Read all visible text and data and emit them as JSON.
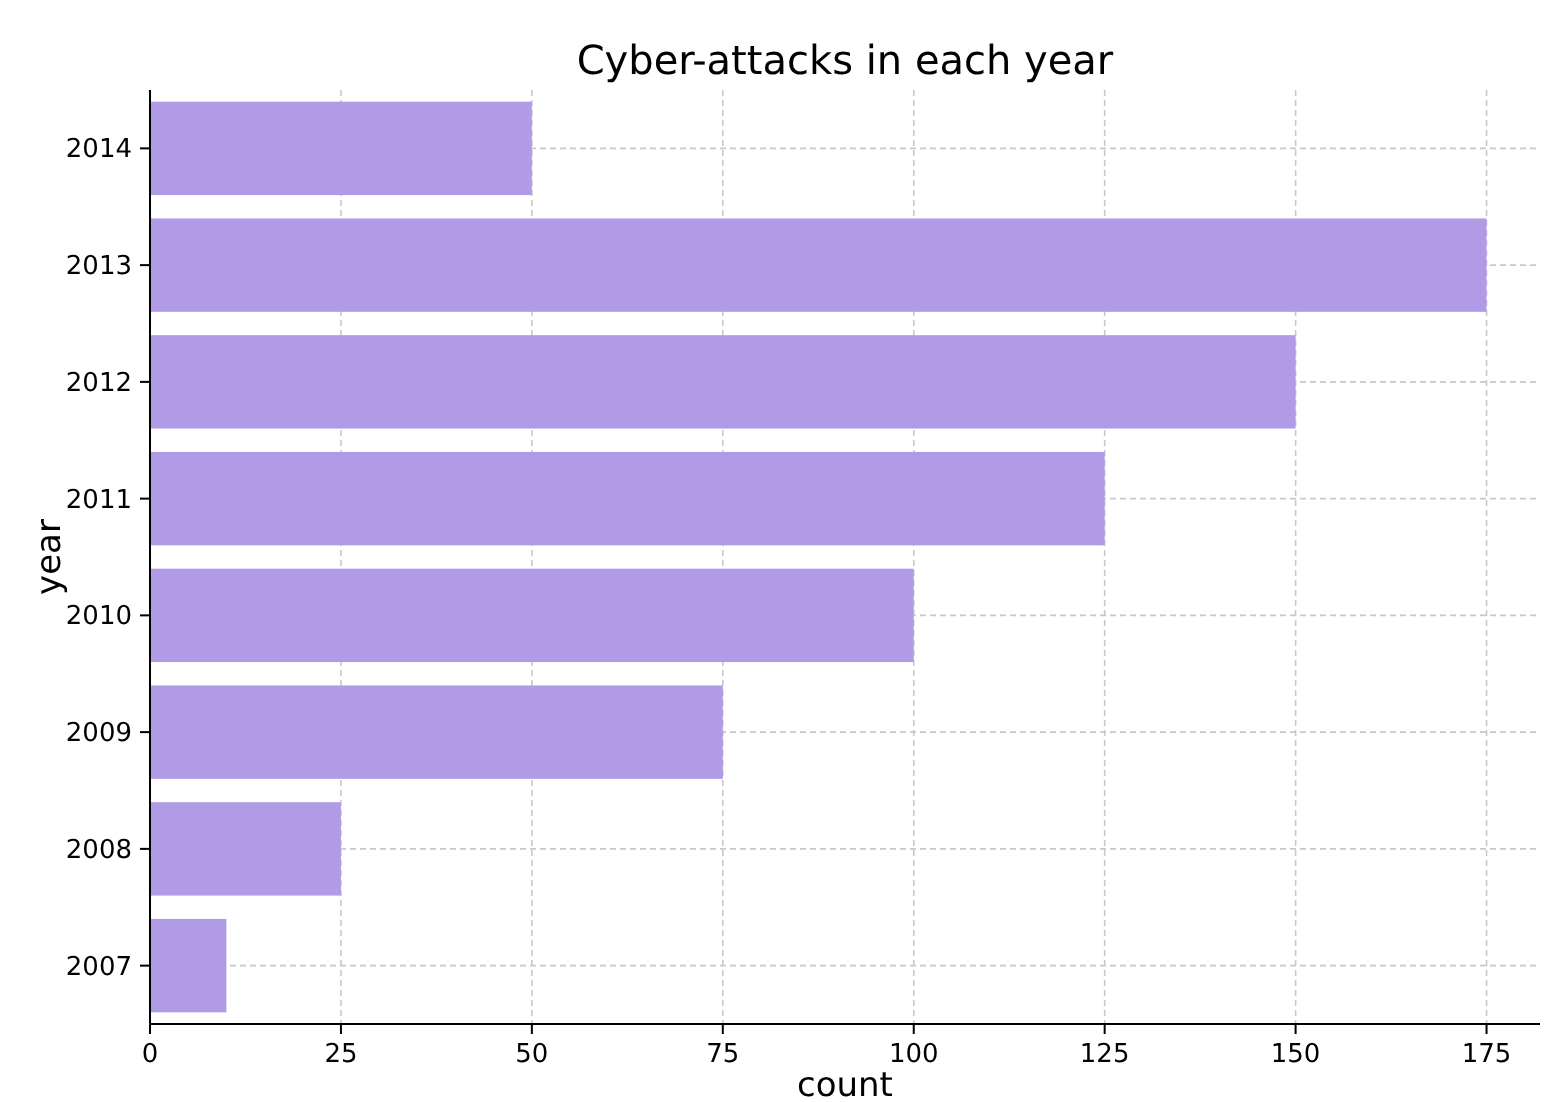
{
  "chart_data": {
    "type": "bar",
    "orientation": "horizontal",
    "title": "Cyber-attacks in each year",
    "xlabel": "count",
    "ylabel": "year",
    "categories": [
      "2014",
      "2013",
      "2012",
      "2011",
      "2010",
      "2009",
      "2008",
      "2007"
    ],
    "values": [
      50,
      175,
      150,
      125,
      100,
      75,
      25,
      10
    ],
    "color": "#b19be6",
    "xlim": [
      0,
      182
    ],
    "xticks": [
      0,
      25,
      50,
      75,
      100,
      125,
      150,
      175
    ],
    "grid": true
  }
}
